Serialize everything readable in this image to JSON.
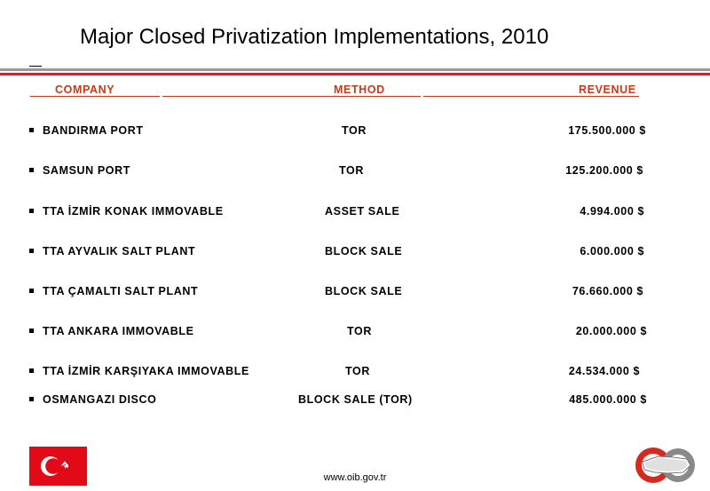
{
  "title": "Major Closed Privatization Implementations, 2010",
  "table": {
    "headers": {
      "company": "COMPANY",
      "method": "METHOD",
      "revenue": "REVENUE"
    },
    "rows": [
      {
        "company": "BANDIRMA PORT",
        "method": "TOR",
        "revenue": "175.500.000 $"
      },
      {
        "company": "SAMSUN PORT",
        "method": "TOR",
        "revenue": "125.200.000 $"
      },
      {
        "company": "TTA İZMİR KONAK IMMOVABLE",
        "method": "ASSET SALE",
        "revenue": "4.994.000 $"
      },
      {
        "company": "TTA AYVALIK SALT PLANT",
        "method": "BLOCK SALE",
        "revenue": "6.000.000 $"
      },
      {
        "company": "TTA ÇAMALTI SALT PLANT",
        "method": "BLOCK SALE",
        "revenue": "76.660.000 $"
      },
      {
        "company": "TTA ANKARA IMMOVABLE",
        "method": "TOR",
        "revenue": "20.000.000 $"
      },
      {
        "company": "TTA İZMİR KARŞIYAKA IMMOVABLE",
        "method": "TOR",
        "revenue": "24.534.000 $"
      },
      {
        "company": "OSMANGAZI DISCO",
        "method": "BLOCK SALE (TOR)",
        "revenue": "485.000.000 $"
      }
    ]
  },
  "footer": {
    "url": "www.oib.gov.tr"
  },
  "colors": {
    "header_text": "#c8391a",
    "accent_rule": "#c0282d",
    "flag_red": "#e30a17"
  },
  "icons": {
    "flag": "turkish-flag-icon",
    "logo": "oib-logo-icon"
  }
}
